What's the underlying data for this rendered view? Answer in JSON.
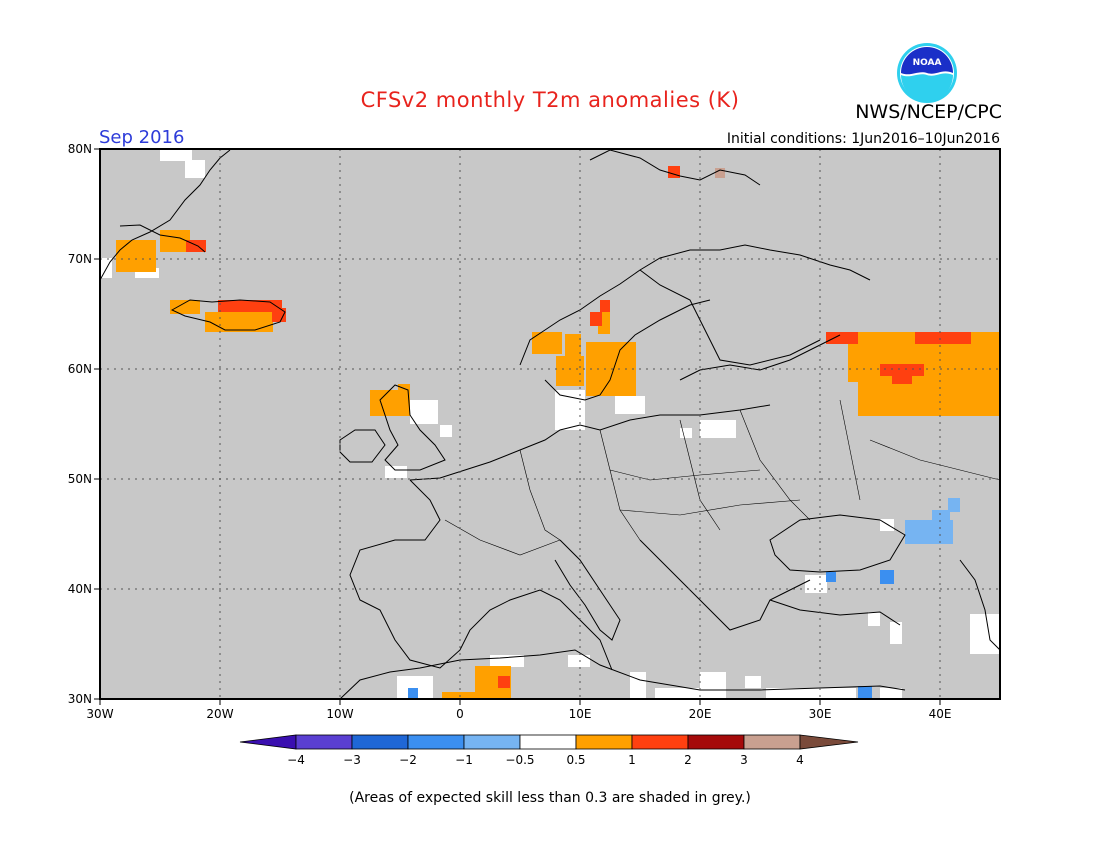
{
  "header": {
    "title": "CFSv2 monthly T2m anomalies (K)",
    "agency": "NWS/NCEP/CPC",
    "logo_text": "NOAA",
    "month": "Sep 2016",
    "initial_conditions": "Initial conditions: 1Jun2016–10Jun2016"
  },
  "map": {
    "lon_range": [
      -30,
      45
    ],
    "lat_range": [
      30,
      80
    ],
    "lon_ticks": [
      "30W",
      "20W",
      "10W",
      "0",
      "10E",
      "20E",
      "30E",
      "40E"
    ],
    "lat_ticks": [
      "30N",
      "40N",
      "50N",
      "60N",
      "70N",
      "80N"
    ],
    "background_color": "#c8c8c8",
    "grid": "dotted"
  },
  "colorbar": {
    "labels": [
      "−4",
      "−3",
      "−2",
      "−1",
      "−0.5",
      "0.5",
      "1",
      "2",
      "3",
      "4"
    ],
    "colors": [
      "#3a0fb0",
      "#5a3fd2",
      "#1f67d6",
      "#3b8ff0",
      "#76b4f2",
      "#ffffff",
      "#ffa000",
      "#ff4010",
      "#a50a0a",
      "#c9a090",
      "#7a4a3a"
    ]
  },
  "footnote": "(Areas of expected skill less than 0.3 are shaded in grey.)"
}
